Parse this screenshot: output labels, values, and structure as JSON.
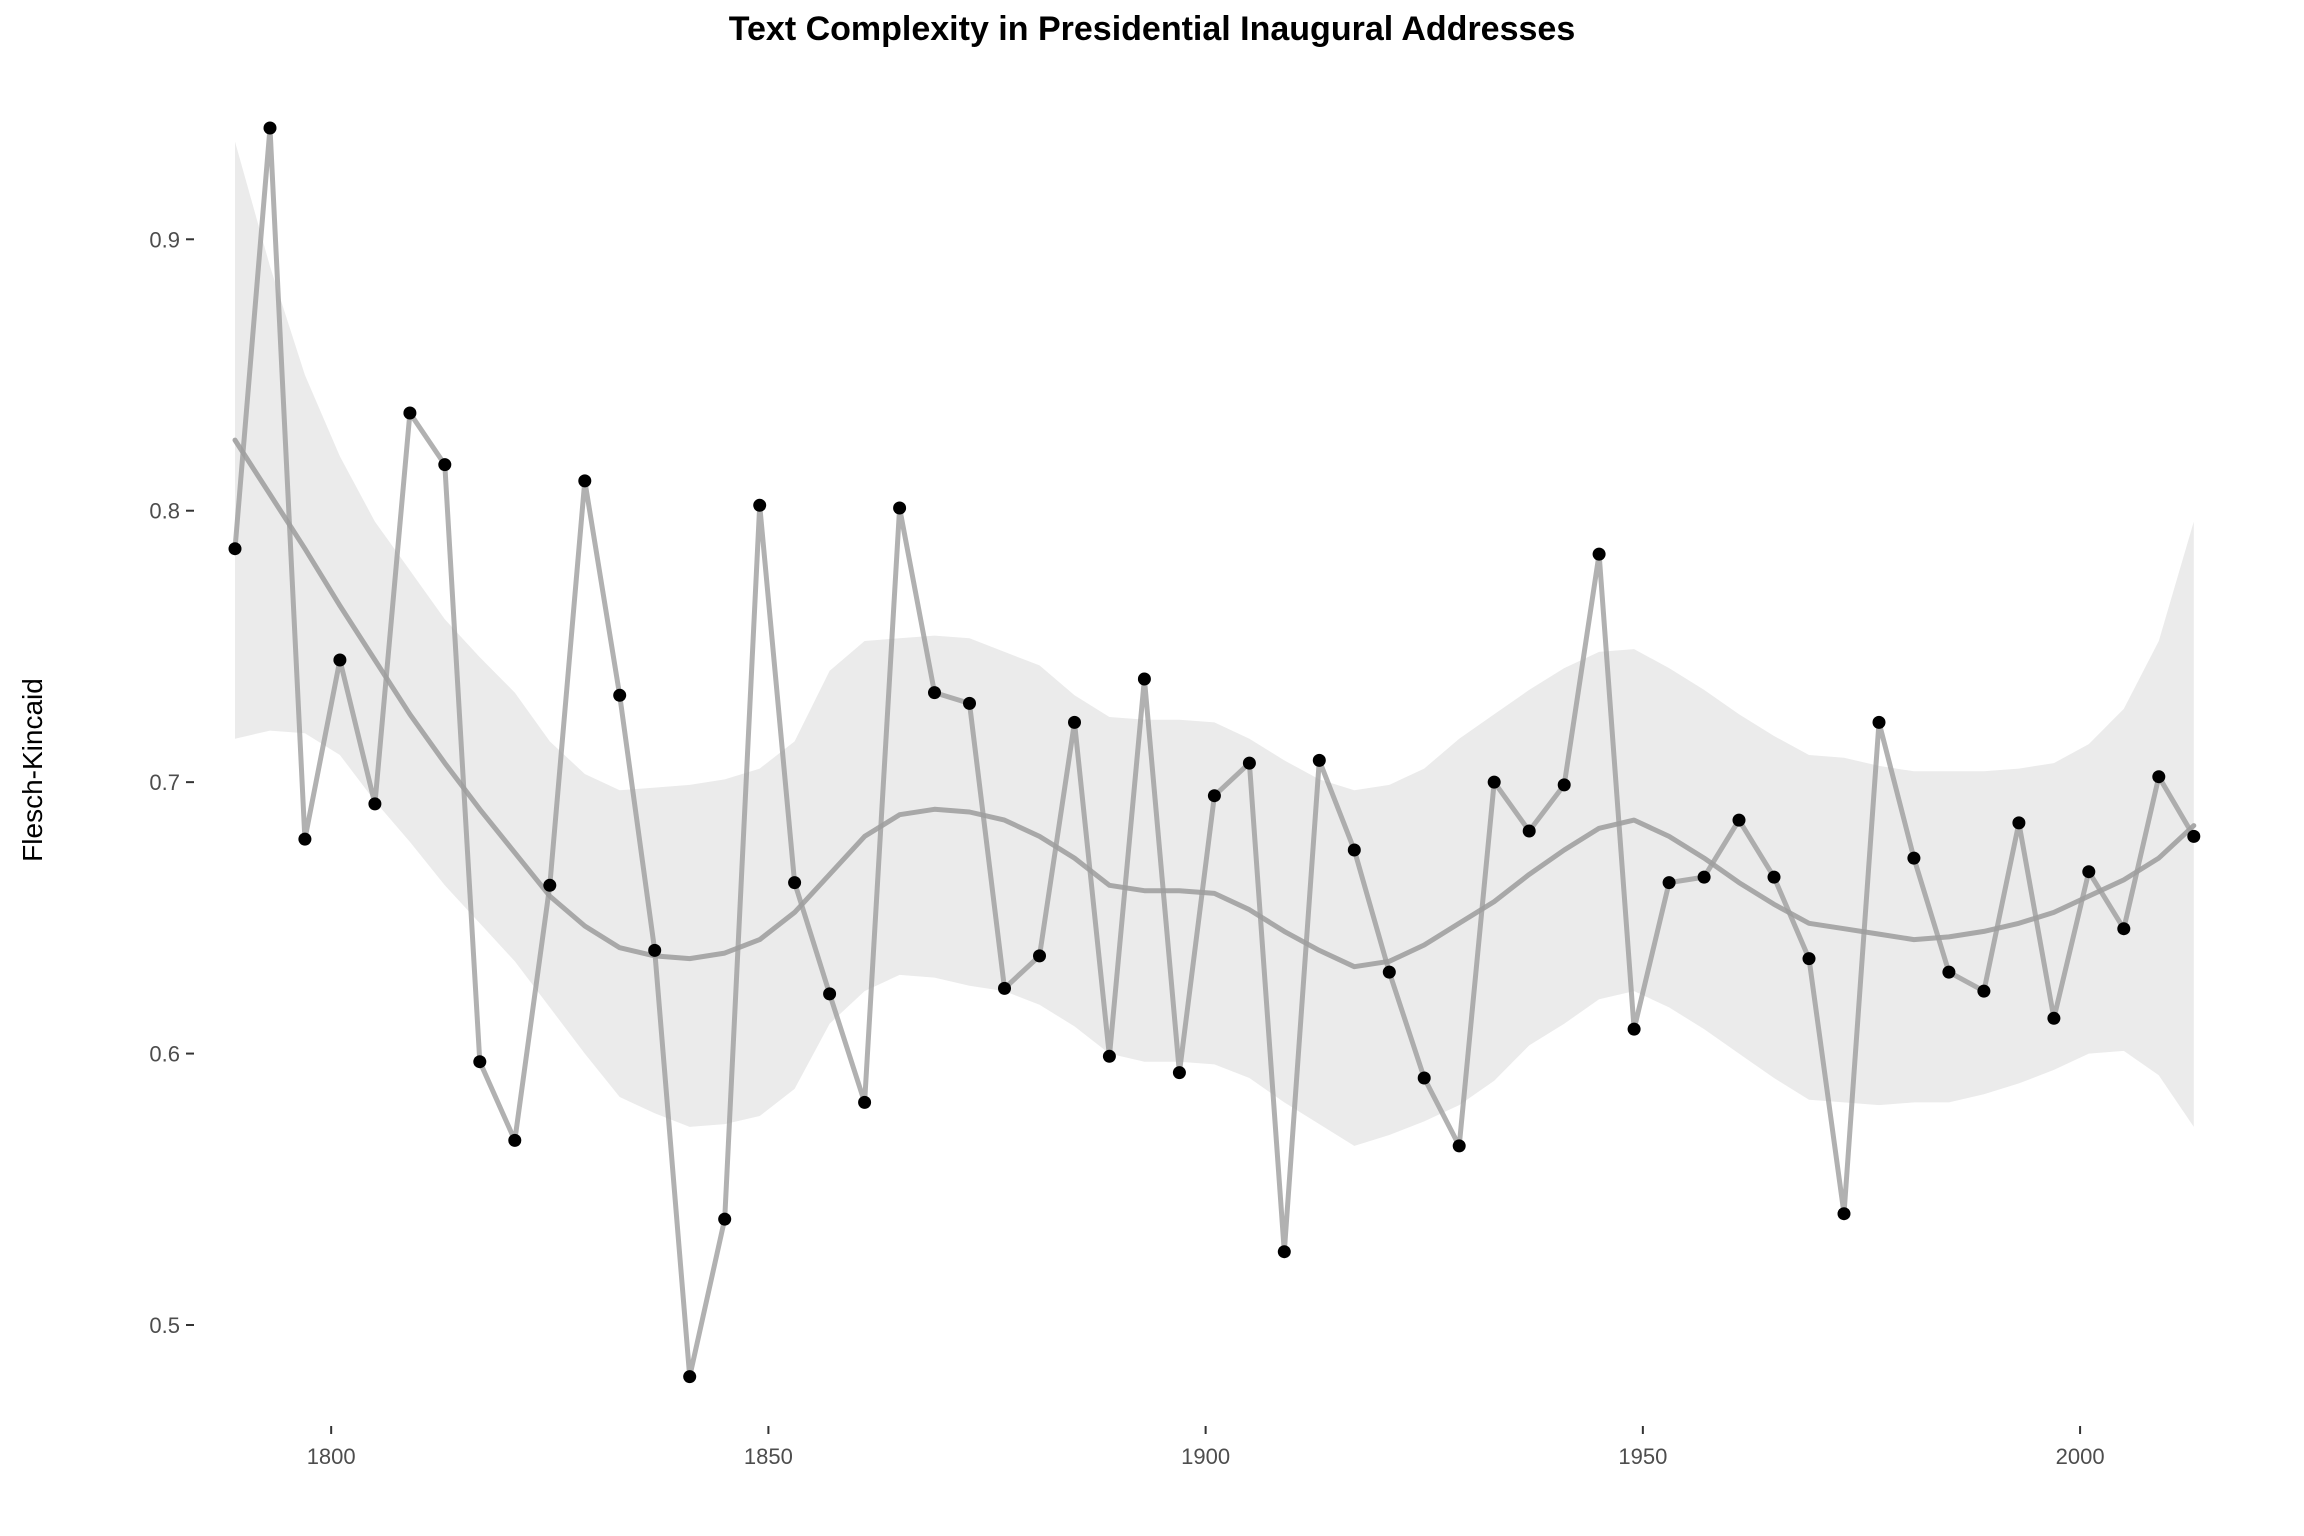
{
  "chart_data": {
    "type": "line",
    "title": "Text Complexity in Presidential Inaugural Addresses",
    "xlabel": "",
    "ylabel": "Flesch-Kincaid",
    "xlim": [
      1785,
      2016
    ],
    "ylim": [
      0.465,
      0.955
    ],
    "x_ticks": [
      1800,
      1850,
      1900,
      1950,
      2000
    ],
    "y_ticks": [
      0.5,
      0.6,
      0.7,
      0.8,
      0.9
    ],
    "grid": false,
    "legend": "none",
    "colors": {
      "line": "#9e9e9e",
      "points": "#000000",
      "smooth": "#a8a8a8",
      "band": "#ebebeb"
    },
    "series": [
      {
        "x": [
          1789,
          1793,
          1797,
          1801,
          1805,
          1809,
          1813,
          1817,
          1821,
          1825,
          1829,
          1833,
          1837,
          1841,
          1845,
          1849,
          1853,
          1857,
          1861,
          1865,
          1869,
          1873,
          1877,
          1881,
          1885,
          1889,
          1893,
          1897,
          1901,
          1905,
          1909,
          1913,
          1917,
          1921,
          1925,
          1929,
          1933,
          1937,
          1941,
          1945,
          1949,
          1953,
          1957,
          1961,
          1965,
          1969,
          1973,
          1977,
          1981,
          1985,
          1989,
          1993,
          1997,
          2001,
          2005,
          2009,
          2013
        ],
        "y": [
          0.786,
          0.941,
          0.679,
          0.745,
          0.692,
          0.836,
          0.817,
          0.597,
          0.568,
          0.662,
          0.811,
          0.732,
          0.638,
          0.481,
          0.539,
          0.802,
          0.663,
          0.622,
          0.582,
          0.801,
          0.733,
          0.729,
          0.624,
          0.636,
          0.722,
          0.599,
          0.738,
          0.593,
          0.695,
          0.707,
          0.527,
          0.708,
          0.675,
          0.63,
          0.591,
          0.566,
          0.7,
          0.682,
          0.699,
          0.784,
          0.609,
          0.663,
          0.665,
          0.686,
          0.665,
          0.635,
          0.541,
          0.722,
          0.672,
          0.63,
          0.623,
          0.685,
          0.613,
          0.667,
          0.646,
          0.702,
          0.68
        ]
      }
    ],
    "smooth": {
      "x": [
        1789,
        1793,
        1797,
        1801,
        1805,
        1809,
        1813,
        1817,
        1821,
        1825,
        1829,
        1833,
        1837,
        1841,
        1845,
        1849,
        1853,
        1857,
        1861,
        1865,
        1869,
        1873,
        1877,
        1881,
        1885,
        1889,
        1893,
        1897,
        1901,
        1905,
        1909,
        1913,
        1917,
        1921,
        1925,
        1929,
        1933,
        1937,
        1941,
        1945,
        1949,
        1953,
        1957,
        1961,
        1965,
        1969,
        1973,
        1977,
        1981,
        1985,
        1989,
        1993,
        1997,
        2001,
        2005,
        2009,
        2013
      ],
      "y": [
        0.826,
        0.806,
        0.786,
        0.765,
        0.745,
        0.725,
        0.707,
        0.69,
        0.674,
        0.658,
        0.647,
        0.639,
        0.636,
        0.635,
        0.637,
        0.642,
        0.652,
        0.666,
        0.68,
        0.688,
        0.69,
        0.689,
        0.686,
        0.68,
        0.672,
        0.662,
        0.66,
        0.66,
        0.659,
        0.653,
        0.645,
        0.638,
        0.632,
        0.634,
        0.64,
        0.648,
        0.656,
        0.666,
        0.675,
        0.683,
        0.686,
        0.68,
        0.672,
        0.663,
        0.655,
        0.648,
        0.646,
        0.644,
        0.642,
        0.643,
        0.645,
        0.648,
        0.652,
        0.658,
        0.664,
        0.672,
        0.684
      ],
      "lower": [
        0.716,
        0.719,
        0.718,
        0.71,
        0.693,
        0.678,
        0.662,
        0.648,
        0.634,
        0.617,
        0.6,
        0.584,
        0.578,
        0.573,
        0.574,
        0.577,
        0.587,
        0.611,
        0.623,
        0.629,
        0.628,
        0.625,
        0.623,
        0.618,
        0.61,
        0.6,
        0.597,
        0.597,
        0.596,
        0.591,
        0.582,
        0.574,
        0.566,
        0.57,
        0.575,
        0.581,
        0.59,
        0.603,
        0.611,
        0.62,
        0.623,
        0.617,
        0.609,
        0.6,
        0.591,
        0.583,
        0.582,
        0.581,
        0.582,
        0.582,
        0.585,
        0.589,
        0.594,
        0.6,
        0.601,
        0.592,
        0.573
      ],
      "upper": [
        0.936,
        0.89,
        0.85,
        0.82,
        0.796,
        0.778,
        0.76,
        0.746,
        0.733,
        0.715,
        0.703,
        0.697,
        0.698,
        0.699,
        0.701,
        0.705,
        0.715,
        0.741,
        0.752,
        0.753,
        0.754,
        0.753,
        0.748,
        0.743,
        0.732,
        0.724,
        0.723,
        0.723,
        0.722,
        0.716,
        0.708,
        0.701,
        0.697,
        0.699,
        0.705,
        0.716,
        0.725,
        0.734,
        0.742,
        0.748,
        0.749,
        0.742,
        0.734,
        0.725,
        0.717,
        0.71,
        0.709,
        0.706,
        0.704,
        0.704,
        0.704,
        0.705,
        0.707,
        0.714,
        0.727,
        0.752,
        0.796
      ]
    }
  }
}
